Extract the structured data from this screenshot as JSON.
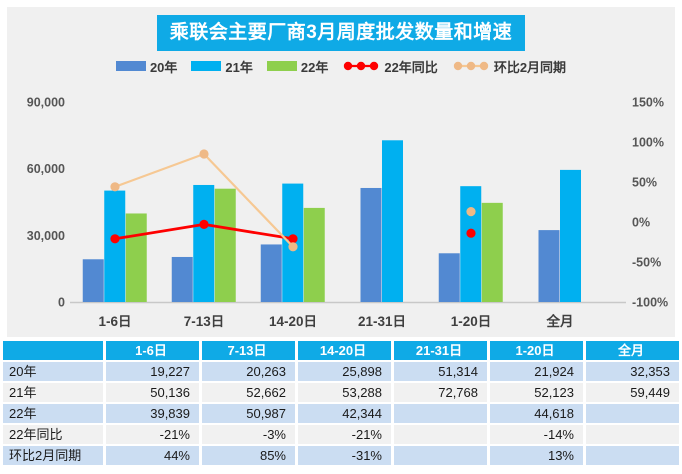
{
  "title": "乘联会主要厂商3月周度批发数量和增速",
  "colors": {
    "panel_bg": "#F0F0F0",
    "title_bg": "#0FAAE6",
    "bar_20": "#5289D2",
    "bar_21": "#00B0F0",
    "bar_22": "#8ECF4D",
    "line_yoy": "#FE0000",
    "line_mom": "#F6C893",
    "mom_marker": "#EFB986",
    "axis_text": "#565656",
    "category_text": "#3F3F3F",
    "axis_line": "#C8C8C8",
    "table_header_bg": "#0FAAE6",
    "row_blue": "#CBDDF2",
    "row_gray": "#F1F1F1"
  },
  "legend": [
    {
      "label": "20年",
      "type": "bar",
      "color": "#5289D2"
    },
    {
      "label": "21年",
      "type": "bar",
      "color": "#00B0F0"
    },
    {
      "label": "22年",
      "type": "bar",
      "color": "#8ECF4D"
    },
    {
      "label": "22年同比",
      "type": "line",
      "color": "#FE0000",
      "marker": "#FE0000"
    },
    {
      "label": "环比2月同期",
      "type": "line",
      "color": "#F6C893",
      "marker": "#EFB986"
    }
  ],
  "chart_data": {
    "type": "bar",
    "title": "乘联会主要厂商3月周度批发数量和增速",
    "categories": [
      "1-6日",
      "7-13日",
      "14-20日",
      "21-31日",
      "1-20日",
      "全月"
    ],
    "series": [
      {
        "name": "20年",
        "type": "bar",
        "color": "#5289D2",
        "values": [
          19227,
          20263,
          25898,
          51314,
          21924,
          32353
        ]
      },
      {
        "name": "21年",
        "type": "bar",
        "color": "#00B0F0",
        "values": [
          50136,
          52662,
          53288,
          72768,
          52123,
          59449
        ]
      },
      {
        "name": "22年",
        "type": "bar",
        "color": "#8ECF4D",
        "values": [
          39839,
          50987,
          42344,
          null,
          44618,
          null
        ]
      },
      {
        "name": "22年同比",
        "type": "line",
        "axis": "right",
        "color": "#FE0000",
        "marker": "#FE0000",
        "values": [
          -21,
          -3,
          -21,
          null,
          -14,
          null
        ]
      },
      {
        "name": "环比2月同期",
        "type": "line",
        "axis": "right",
        "color": "#F6C893",
        "marker": "#EFB986",
        "values": [
          44,
          85,
          -31,
          null,
          13,
          null
        ]
      }
    ],
    "left_axis": {
      "min": 0,
      "max": 90000,
      "tick_values": [
        0,
        30000,
        60000,
        90000
      ],
      "tick_labels": [
        "0",
        "30,000",
        "60,000",
        "90,000"
      ]
    },
    "right_axis": {
      "min": -100,
      "max": 150,
      "tick_values": [
        -100,
        -50,
        0,
        50,
        100,
        150
      ],
      "tick_labels": [
        "-100%",
        "-50%",
        "0%",
        "50%",
        "100%",
        "150%"
      ]
    },
    "grid": false,
    "legend_position": "top"
  },
  "table": {
    "header": [
      "",
      "1-6日",
      "7-13日",
      "14-20日",
      "21-31日",
      "1-20日",
      "全月"
    ],
    "rows": [
      {
        "label": "20年",
        "cells": [
          "19,227",
          "20,263",
          "25,898",
          "51,314",
          "21,924",
          "32,353"
        ]
      },
      {
        "label": "21年",
        "cells": [
          "50,136",
          "52,662",
          "53,288",
          "72,768",
          "52,123",
          "59,449"
        ]
      },
      {
        "label": "22年",
        "cells": [
          "39,839",
          "50,987",
          "42,344",
          "",
          "44,618",
          ""
        ]
      },
      {
        "label": "22年同比",
        "cells": [
          "-21%",
          "-3%",
          "-21%",
          "",
          "-14%",
          ""
        ]
      },
      {
        "label": "环比2月同期",
        "cells": [
          "44%",
          "85%",
          "-31%",
          "",
          "13%",
          ""
        ]
      }
    ]
  }
}
